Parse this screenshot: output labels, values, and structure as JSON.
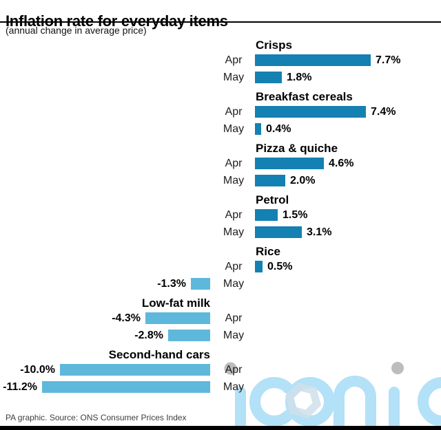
{
  "header": {
    "title": "Inflation rate for everyday items",
    "subtitle": "(annual change in average price)"
  },
  "footer": {
    "source": "PA graphic. Source: ONS Consumer Prices Index"
  },
  "watermark": {
    "text": "iconic"
  },
  "colors": {
    "positive_bar": "#1580B2",
    "negative_bar": "#5EB8DC",
    "watermark_blue": "#B3E1F7",
    "watermark_grey": "#BDBDBD",
    "hexagon_fill": "#CFDFEB",
    "title_rule": "#000000",
    "bottom_bar": "#000000"
  },
  "chart_data": {
    "type": "bar",
    "orientation": "horizontal",
    "title": "Inflation rate for everyday items",
    "subtitle": "(annual change in average price)",
    "source": "PA graphic. Source: ONS Consumer Prices Index",
    "unit": "% annual change in average price",
    "month_categories": [
      "Apr",
      "May"
    ],
    "axis": {
      "gridlines": false,
      "value_range": [
        -11.2,
        7.7
      ]
    },
    "legend": "none",
    "groups": [
      {
        "item": "Crisps",
        "bars": [
          {
            "month": "Apr",
            "value": 7.7,
            "label": "7.7%"
          },
          {
            "month": "May",
            "value": 1.8,
            "label": "1.8%"
          }
        ]
      },
      {
        "item": "Breakfast cereals",
        "bars": [
          {
            "month": "Apr",
            "value": 7.4,
            "label": "7.4%"
          },
          {
            "month": "May",
            "value": 0.4,
            "label": "0.4%"
          }
        ]
      },
      {
        "item": "Pizza & quiche",
        "bars": [
          {
            "month": "Apr",
            "value": 4.6,
            "label": "4.6%"
          },
          {
            "month": "May",
            "value": 2.0,
            "label": "2.0%"
          }
        ]
      },
      {
        "item": "Petrol",
        "bars": [
          {
            "month": "Apr",
            "value": 1.5,
            "label": "1.5%"
          },
          {
            "month": "May",
            "value": 3.1,
            "label": "3.1%"
          }
        ]
      },
      {
        "item": "Rice",
        "bars": [
          {
            "month": "Apr",
            "value": 0.5,
            "label": "0.5%"
          },
          {
            "month": "May",
            "value": -1.3,
            "label": "-1.3%"
          }
        ]
      },
      {
        "item": "Low-fat milk",
        "bars": [
          {
            "month": "Apr",
            "value": -4.3,
            "label": "-4.3%"
          },
          {
            "month": "May",
            "value": -2.8,
            "label": "-2.8%"
          }
        ]
      },
      {
        "item": "Second-hand cars",
        "bars": [
          {
            "month": "Apr",
            "value": -10.0,
            "label": "-10.0%"
          },
          {
            "month": "May",
            "value": -11.2,
            "label": "-11.2%"
          }
        ]
      }
    ]
  }
}
